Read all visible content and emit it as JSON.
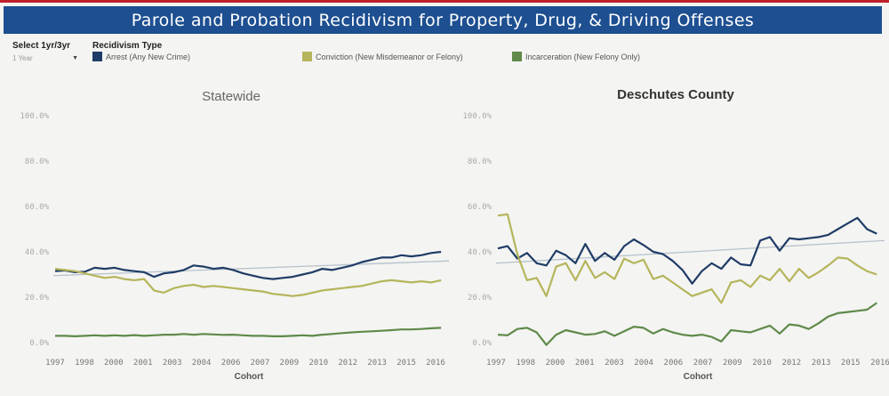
{
  "header": {
    "title": "Parole and Probation Recidivism for Property, Drug, & Driving Offenses"
  },
  "controls": {
    "select_label": "Select 1yr/3yr",
    "select_value": "1 Year",
    "type_label": "Recidivism Type"
  },
  "colors": {
    "arrest": "#1f3c66",
    "conviction": "#b5b55c",
    "incarceration": "#5f8a4a",
    "trend": "#b6c2cc"
  },
  "legend": [
    {
      "label": "Arrest (Any New Crime)",
      "color": "#1f3c66"
    },
    {
      "label": "Conviction (New Misdemeanor or Felony)",
      "color": "#b5b55c"
    },
    {
      "label": "Incarceration (New Felony Only)",
      "color": "#5f8a4a"
    }
  ],
  "chart_data": [
    {
      "type": "line",
      "title": "Statewide",
      "xlabel": "Cohort",
      "ylabel": "",
      "ylim": [
        0,
        100
      ],
      "yticks": [
        "0.0%",
        "20.0%",
        "40.0%",
        "60.0%",
        "80.0%",
        "100.0%"
      ],
      "x_tick_labels": [
        "1997",
        "1998",
        "2000",
        "2001",
        "2003",
        "2004",
        "2006",
        "2007",
        "2009",
        "2010",
        "2012",
        "2013",
        "2015",
        "2016"
      ],
      "x_range": [
        1997,
        2016.9
      ],
      "x": [
        1997,
        1997.5,
        1998,
        1998.5,
        1999,
        1999.5,
        2000,
        2000.5,
        2001,
        2001.5,
        2002,
        2002.5,
        2003,
        2003.5,
        2004,
        2004.5,
        2005,
        2005.5,
        2006,
        2006.5,
        2007,
        2007.5,
        2008,
        2008.5,
        2009,
        2009.5,
        2010,
        2010.5,
        2011,
        2011.5,
        2012,
        2012.5,
        2013,
        2013.5,
        2014,
        2014.5,
        2015,
        2015.5,
        2016,
        2016.5
      ],
      "series": [
        {
          "key": "arrest",
          "values": [
            31.5,
            31.8,
            31.0,
            31.2,
            33.0,
            32.5,
            33.0,
            32.0,
            31.5,
            31.0,
            29.0,
            30.5,
            31.0,
            32.0,
            34.0,
            33.5,
            32.5,
            33.0,
            32.0,
            30.5,
            29.5,
            28.5,
            28.0,
            28.5,
            29.0,
            30.0,
            31.0,
            32.5,
            32.0,
            33.0,
            34.0,
            35.5,
            36.5,
            37.5,
            37.5,
            38.5,
            38.0,
            38.5,
            39.5,
            40.0
          ]
        },
        {
          "key": "conviction",
          "values": [
            32.5,
            32.0,
            31.5,
            30.5,
            29.5,
            28.5,
            29.0,
            28.0,
            27.5,
            28.0,
            23.0,
            22.0,
            24.0,
            25.0,
            25.5,
            24.5,
            25.0,
            24.5,
            24.0,
            23.5,
            23.0,
            22.5,
            21.5,
            21.0,
            20.5,
            21.0,
            22.0,
            23.0,
            23.5,
            24.0,
            24.5,
            25.0,
            26.0,
            27.0,
            27.5,
            27.0,
            26.5,
            27.0,
            26.5,
            27.5
          ]
        },
        {
          "key": "incarceration",
          "values": [
            3.0,
            3.0,
            2.8,
            3.0,
            3.2,
            3.0,
            3.2,
            3.0,
            3.3,
            3.0,
            3.2,
            3.5,
            3.5,
            3.8,
            3.5,
            3.8,
            3.6,
            3.4,
            3.5,
            3.2,
            3.0,
            3.0,
            2.8,
            2.8,
            3.0,
            3.2,
            3.0,
            3.5,
            3.8,
            4.2,
            4.5,
            4.8,
            5.0,
            5.2,
            5.5,
            5.8,
            5.8,
            6.0,
            6.3,
            6.5
          ]
        }
      ],
      "trend": {
        "start": 29.5,
        "end": 36.0
      }
    },
    {
      "type": "line",
      "title": "Deschutes County",
      "xlabel": "Cohort",
      "ylabel": "",
      "ylim": [
        0,
        100
      ],
      "yticks": [
        "0.0%",
        "20.0%",
        "40.0%",
        "60.0%",
        "80.0%",
        "100.0%"
      ],
      "x_tick_labels": [
        "1997",
        "1998",
        "2000",
        "2001",
        "2003",
        "2004",
        "2006",
        "2007",
        "2009",
        "2010",
        "2012",
        "2013",
        "2015",
        "2016"
      ],
      "x_range": [
        1997,
        2016.9
      ],
      "x": [
        1997,
        1997.5,
        1998,
        1998.5,
        1999,
        1999.5,
        2000,
        2000.5,
        2001,
        2001.5,
        2002,
        2002.5,
        2003,
        2003.5,
        2004,
        2004.5,
        2005,
        2005.5,
        2006,
        2006.5,
        2007,
        2007.5,
        2008,
        2008.5,
        2009,
        2009.5,
        2010,
        2010.5,
        2011,
        2011.5,
        2012,
        2012.5,
        2013,
        2013.5,
        2014,
        2014.5,
        2015,
        2015.5,
        2016,
        2016.5
      ],
      "series": [
        {
          "key": "arrest",
          "values": [
            41.5,
            42.5,
            37.0,
            39.5,
            35.0,
            34.0,
            40.5,
            38.5,
            35.0,
            43.5,
            36.0,
            39.5,
            36.5,
            42.5,
            45.5,
            43.0,
            40.0,
            39.0,
            36.0,
            32.0,
            26.0,
            31.5,
            35.0,
            32.5,
            37.5,
            34.5,
            34.0,
            45.0,
            46.5,
            40.5,
            46.0,
            45.5,
            46.0,
            46.5,
            47.5,
            50.0,
            52.5,
            55.0,
            50.0,
            48.0
          ]
        },
        {
          "key": "conviction",
          "values": [
            56.0,
            56.5,
            39.0,
            27.5,
            28.5,
            20.5,
            33.5,
            35.0,
            27.5,
            36.0,
            28.5,
            31.0,
            28.0,
            37.0,
            35.0,
            36.5,
            28.0,
            29.5,
            26.5,
            23.5,
            20.5,
            22.0,
            23.5,
            17.5,
            26.5,
            27.5,
            24.5,
            29.5,
            27.5,
            32.5,
            27.0,
            32.5,
            28.5,
            31.0,
            34.0,
            37.5,
            37.0,
            34.0,
            31.5,
            30.0
          ]
        },
        {
          "key": "incarceration",
          "values": [
            3.5,
            3.2,
            6.0,
            6.5,
            4.5,
            -1.0,
            3.5,
            5.5,
            4.5,
            3.5,
            3.8,
            5.0,
            3.0,
            5.0,
            7.0,
            6.5,
            4.0,
            6.0,
            4.5,
            3.5,
            3.0,
            3.5,
            2.5,
            0.5,
            5.5,
            5.0,
            4.5,
            6.0,
            7.5,
            4.0,
            8.0,
            7.5,
            6.0,
            8.5,
            11.5,
            13.0,
            13.5,
            14.0,
            14.5,
            17.5
          ]
        }
      ],
      "trend": {
        "start": 35.0,
        "end": 45.0
      }
    }
  ]
}
